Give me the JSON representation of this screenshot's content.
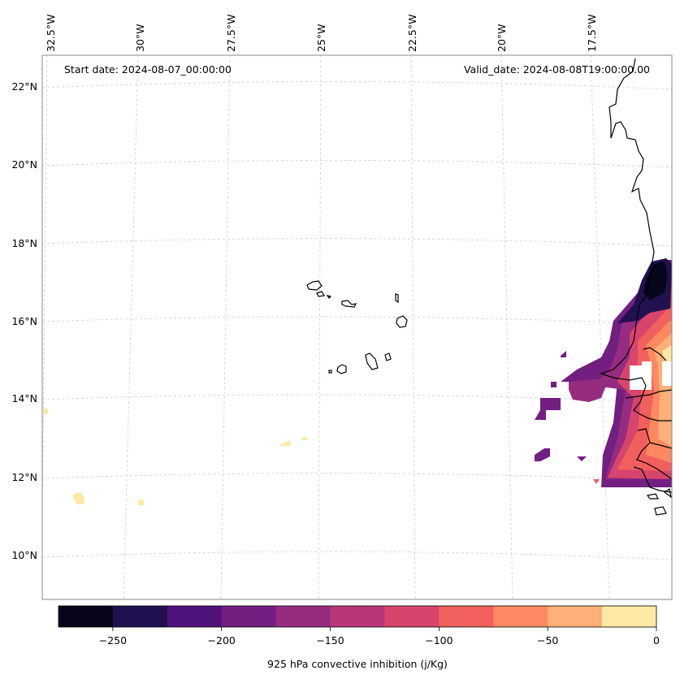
{
  "map": {
    "start_date": "Start date: 2024-08-07_00:00:00",
    "valid_date": "Valid_date: 2024-08-08T19:00:00.00",
    "lon_labels": [
      "32.5°W",
      "30°W",
      "27.5°W",
      "25°W",
      "22.5°W",
      "20°W",
      "17.5°W"
    ],
    "lat_labels": [
      "22°N",
      "20°N",
      "18°N",
      "16°N",
      "14°N",
      "12°N",
      "10°N"
    ]
  },
  "colorbar": {
    "title": "925 hPa convective inhibition (j/Kg)",
    "tick_labels": [
      "−250",
      "−200",
      "−150",
      "−100",
      "−50",
      "0"
    ],
    "levels": [
      -275,
      -250,
      -225,
      -200,
      -175,
      -150,
      -125,
      -100,
      -75,
      -50,
      -25,
      0
    ],
    "colors": [
      "#06051a",
      "#221150",
      "#4f127b",
      "#721f81",
      "#952c80",
      "#b73779",
      "#d8456c",
      "#f1605d",
      "#fc8961",
      "#feb078",
      "#fde9a3"
    ]
  },
  "colors": {
    "coastline": "#000000",
    "gridline": "#cccccc"
  }
}
